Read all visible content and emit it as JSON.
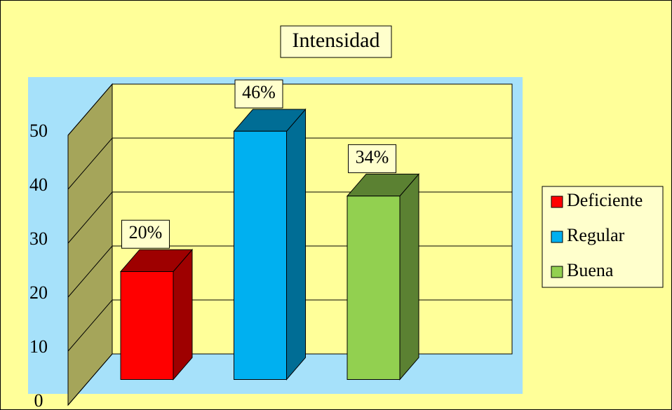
{
  "chart_data": {
    "type": "bar3d",
    "title": "Intensidad",
    "categories": [
      null
    ],
    "series": [
      {
        "name": "Deficiente",
        "color": "#ff0000",
        "values": [
          20
        ],
        "value_labels": [
          "20%"
        ]
      },
      {
        "name": "Regular",
        "color": "#00b0f0",
        "values": [
          46
        ],
        "value_labels": [
          "46%"
        ]
      },
      {
        "name": "Buena",
        "color": "#92d050",
        "values": [
          34
        ],
        "value_labels": [
          "34%"
        ]
      }
    ],
    "ylim": [
      0,
      50
    ],
    "yticks": [
      0,
      10,
      20,
      30,
      40,
      50
    ],
    "grid": true,
    "legend": "right"
  }
}
